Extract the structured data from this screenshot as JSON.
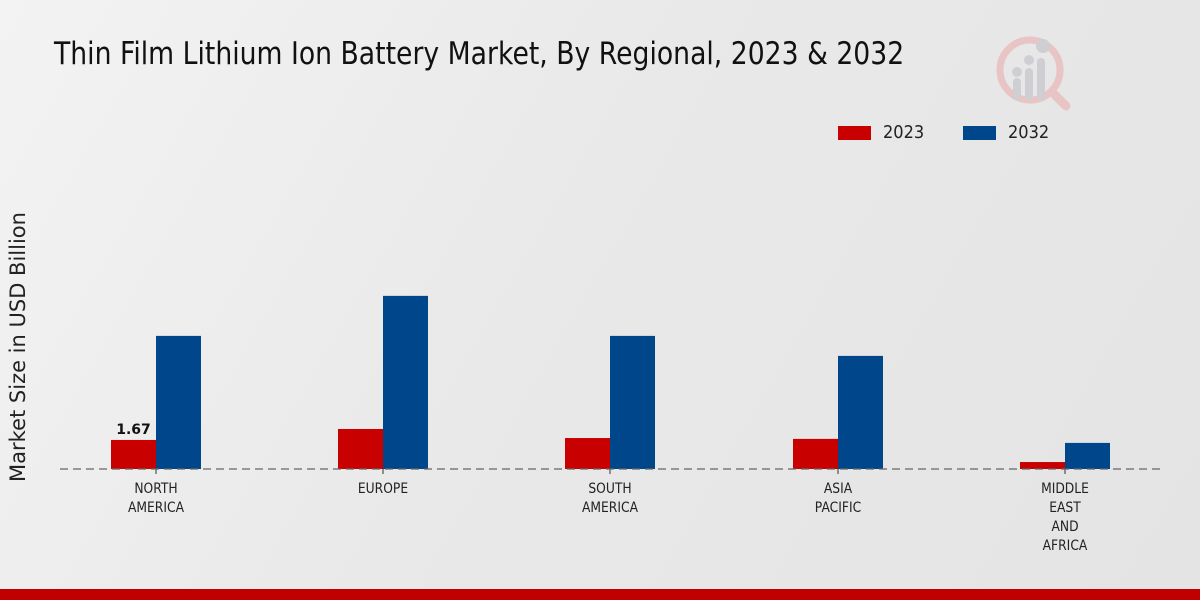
{
  "chart_data": {
    "type": "bar",
    "title": "Thin Film Lithium Ion Battery Market, By Regional, 2023 & 2032",
    "xlabel": "",
    "ylabel": "Market Size in USD Billion",
    "categories": [
      [
        "NORTH",
        "AMERICA"
      ],
      [
        "EUROPE"
      ],
      [
        "SOUTH",
        "AMERICA"
      ],
      [
        "ASIA",
        "PACIFIC"
      ],
      [
        "MIDDLE",
        "EAST",
        "AND",
        "AFRICA"
      ]
    ],
    "series": [
      {
        "name": "2023",
        "color": "#c80000",
        "values": [
          1.67,
          2.3,
          1.78,
          1.73,
          0.4
        ]
      },
      {
        "name": "2032",
        "color": "#00468b",
        "values": [
          7.65,
          9.95,
          7.65,
          6.5,
          1.5
        ]
      }
    ],
    "data_labels": [
      {
        "series": 0,
        "index": 0,
        "text": "1.67"
      }
    ],
    "ylim": [
      0,
      12
    ],
    "grid": false,
    "legend_position": "top-right",
    "baseline_style": "dashed"
  },
  "footer": {
    "accent_color": "#c00000"
  }
}
